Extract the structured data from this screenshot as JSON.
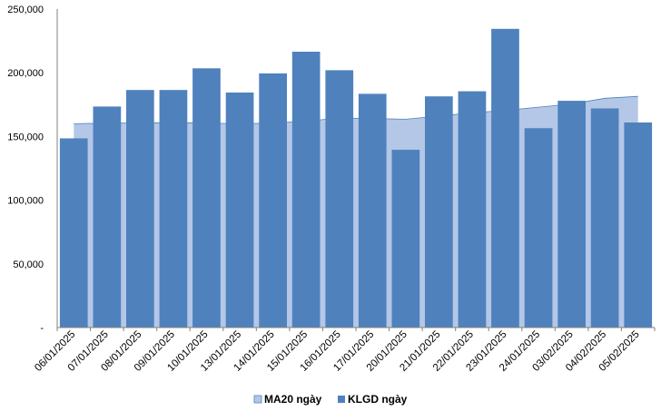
{
  "chart_data": {
    "type": "bar",
    "categories": [
      "06/01/2025",
      "07/01/2025",
      "08/01/2025",
      "09/01/2025",
      "10/01/2025",
      "13/01/2025",
      "14/01/2025",
      "15/01/2025",
      "16/01/2025",
      "17/01/2025",
      "20/01/2025",
      "21/01/2025",
      "22/01/2025",
      "23/01/2025",
      "24/01/2025",
      "03/02/2025",
      "04/02/2025",
      "05/02/2025"
    ],
    "series": [
      {
        "name": "MA20 ngày",
        "type": "area",
        "color": "#b4c7e7",
        "values": [
          160000,
          160500,
          160500,
          160800,
          160500,
          160000,
          160500,
          162000,
          164500,
          164000,
          163500,
          166000,
          168500,
          170500,
          173000,
          175500,
          180000,
          181500
        ]
      },
      {
        "name": "KLGD ngày",
        "type": "bar",
        "color": "#4f81bd",
        "values": [
          148500,
          173500,
          186500,
          186500,
          203500,
          184500,
          199500,
          216500,
          202000,
          183500,
          139500,
          181500,
          185500,
          234500,
          156500,
          178000,
          172000,
          161000
        ]
      }
    ],
    "y_ticks": [
      "-",
      "50,000",
      "100,000",
      "150,000",
      "200,000",
      "250,000"
    ],
    "ylim": [
      0,
      250000
    ],
    "legend_position": "bottom-center",
    "grid": false
  }
}
